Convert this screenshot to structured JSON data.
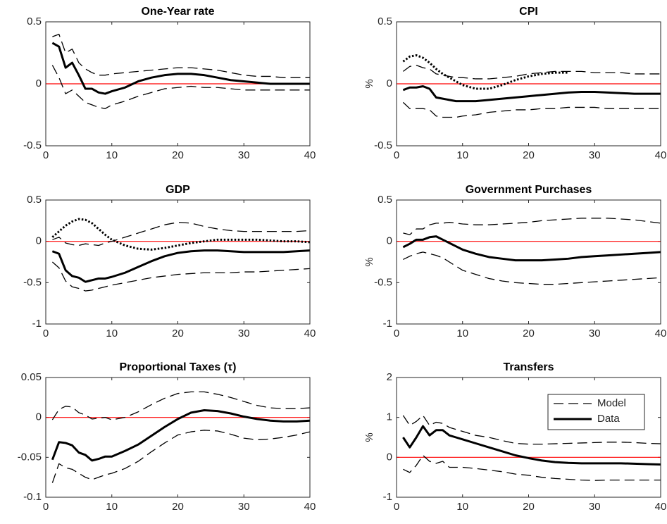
{
  "chart_data": [
    {
      "type": "line",
      "title": "One-Year rate",
      "xlim": [
        0,
        40
      ],
      "xticks": [
        0,
        10,
        20,
        30,
        40
      ],
      "ylim": [
        -0.5,
        0.5
      ],
      "yticks": [
        -0.5,
        0,
        0.5
      ],
      "hline": 0,
      "hline_color": "#ff0000",
      "x": [
        1,
        2,
        3,
        4,
        5,
        6,
        7,
        8,
        9,
        10,
        12,
        14,
        16,
        18,
        20,
        22,
        24,
        26,
        28,
        30,
        32,
        34,
        36,
        38,
        40
      ],
      "series": [
        {
          "style": "dashed",
          "color": "#000000",
          "values": [
            0.38,
            0.4,
            0.25,
            0.28,
            0.17,
            0.12,
            0.09,
            0.07,
            0.07,
            0.08,
            0.09,
            0.1,
            0.11,
            0.12,
            0.13,
            0.13,
            0.12,
            0.11,
            0.09,
            0.07,
            0.06,
            0.06,
            0.05,
            0.05,
            0.05
          ]
        },
        {
          "style": "dashed",
          "color": "#000000",
          "values": [
            0.15,
            0.05,
            -0.08,
            -0.05,
            -0.1,
            -0.15,
            -0.17,
            -0.19,
            -0.2,
            -0.17,
            -0.14,
            -0.1,
            -0.07,
            -0.04,
            -0.03,
            -0.02,
            -0.03,
            -0.03,
            -0.04,
            -0.05,
            -0.05,
            -0.05,
            -0.05,
            -0.05,
            -0.05
          ]
        },
        {
          "style": "solid",
          "color": "#000000",
          "values": [
            0.33,
            0.3,
            0.13,
            0.17,
            0.07,
            -0.04,
            -0.04,
            -0.07,
            -0.08,
            -0.06,
            -0.03,
            0.02,
            0.05,
            0.07,
            0.08,
            0.08,
            0.07,
            0.05,
            0.03,
            0.02,
            0.01,
            0.0,
            0.0,
            0.0,
            0.0
          ]
        }
      ]
    },
    {
      "type": "line",
      "title": "CPI",
      "ylabel": "%",
      "xlim": [
        0,
        40
      ],
      "xticks": [
        0,
        10,
        20,
        30,
        40
      ],
      "ylim": [
        -0.5,
        0.5
      ],
      "yticks": [
        -0.5,
        0,
        0.5
      ],
      "hline": 0,
      "hline_color": "#ff0000",
      "x": [
        1,
        2,
        3,
        4,
        5,
        6,
        7,
        8,
        9,
        10,
        12,
        14,
        16,
        18,
        20,
        22,
        24,
        26,
        28,
        30,
        32,
        34,
        36,
        38,
        40
      ],
      "series": [
        {
          "style": "dashed",
          "color": "#000000",
          "values": [
            0.1,
            0.14,
            0.15,
            0.13,
            0.12,
            0.08,
            0.07,
            0.06,
            0.05,
            0.05,
            0.04,
            0.04,
            0.05,
            0.06,
            0.08,
            0.09,
            0.1,
            0.1,
            0.1,
            0.09,
            0.09,
            0.09,
            0.08,
            0.08,
            0.08
          ]
        },
        {
          "style": "dashed",
          "color": "#000000",
          "values": [
            -0.15,
            -0.2,
            -0.2,
            -0.2,
            -0.21,
            -0.26,
            -0.27,
            -0.27,
            -0.27,
            -0.26,
            -0.25,
            -0.23,
            -0.22,
            -0.21,
            -0.21,
            -0.2,
            -0.2,
            -0.19,
            -0.19,
            -0.19,
            -0.2,
            -0.2,
            -0.2,
            -0.2,
            -0.2
          ]
        },
        {
          "style": "dotted",
          "color": "#000000",
          "values": [
            0.18,
            0.22,
            0.23,
            0.21,
            0.17,
            0.12,
            0.08,
            0.05,
            0.02,
            -0.01,
            -0.04,
            -0.04,
            -0.01,
            0.03,
            0.06,
            0.08,
            0.09,
            0.09,
            null,
            null,
            null,
            null,
            null,
            null,
            null
          ]
        },
        {
          "style": "solid",
          "color": "#000000",
          "values": [
            -0.05,
            -0.03,
            -0.03,
            -0.02,
            -0.04,
            -0.11,
            -0.12,
            -0.13,
            -0.14,
            -0.14,
            -0.14,
            -0.13,
            -0.12,
            -0.11,
            -0.1,
            -0.09,
            -0.08,
            -0.07,
            -0.065,
            -0.065,
            -0.07,
            -0.075,
            -0.08,
            -0.08,
            -0.08
          ]
        }
      ]
    },
    {
      "type": "line",
      "title": "GDP",
      "xlim": [
        0,
        40
      ],
      "xticks": [
        0,
        10,
        20,
        30,
        40
      ],
      "ylim": [
        -1,
        0.5
      ],
      "yticks": [
        -1,
        -0.5,
        0,
        0.5
      ],
      "hline": 0,
      "hline_color": "#ff0000",
      "x": [
        1,
        2,
        3,
        4,
        5,
        6,
        7,
        8,
        9,
        10,
        12,
        14,
        16,
        18,
        20,
        22,
        24,
        26,
        28,
        30,
        32,
        34,
        36,
        38,
        40
      ],
      "series": [
        {
          "style": "dashed",
          "color": "#000000",
          "values": [
            0.02,
            0.05,
            -0.02,
            -0.04,
            -0.05,
            -0.03,
            -0.04,
            -0.05,
            -0.02,
            0.0,
            0.05,
            0.1,
            0.15,
            0.2,
            0.23,
            0.22,
            0.18,
            0.15,
            0.13,
            0.12,
            0.12,
            0.12,
            0.12,
            0.12,
            0.13
          ]
        },
        {
          "style": "dashed",
          "color": "#000000",
          "values": [
            -0.25,
            -0.32,
            -0.48,
            -0.55,
            -0.57,
            -0.6,
            -0.59,
            -0.57,
            -0.55,
            -0.53,
            -0.5,
            -0.47,
            -0.44,
            -0.42,
            -0.4,
            -0.39,
            -0.38,
            -0.38,
            -0.38,
            -0.37,
            -0.37,
            -0.36,
            -0.35,
            -0.34,
            -0.33
          ]
        },
        {
          "style": "dotted",
          "color": "#000000",
          "values": [
            0.05,
            0.12,
            0.19,
            0.24,
            0.27,
            0.26,
            0.22,
            0.15,
            0.08,
            0.02,
            -0.05,
            -0.09,
            -0.1,
            -0.08,
            -0.05,
            -0.02,
            0.0,
            0.02,
            0.02,
            0.02,
            0.02,
            0.01,
            0.0,
            0.0,
            -0.01
          ]
        },
        {
          "style": "solid",
          "color": "#000000",
          "values": [
            -0.12,
            -0.15,
            -0.35,
            -0.42,
            -0.44,
            -0.49,
            -0.47,
            -0.45,
            -0.45,
            -0.43,
            -0.38,
            -0.31,
            -0.24,
            -0.18,
            -0.14,
            -0.12,
            -0.11,
            -0.11,
            -0.12,
            -0.13,
            -0.13,
            -0.13,
            -0.13,
            -0.12,
            -0.11
          ]
        }
      ]
    },
    {
      "type": "line",
      "title": "Government Purchases",
      "ylabel": "%",
      "xlim": [
        0,
        40
      ],
      "xticks": [
        0,
        10,
        20,
        30,
        40
      ],
      "ylim": [
        -1,
        0.5
      ],
      "yticks": [
        -1,
        -0.5,
        0,
        0.5
      ],
      "hline": 0,
      "hline_color": "#ff0000",
      "x": [
        1,
        2,
        3,
        4,
        5,
        6,
        7,
        8,
        9,
        10,
        12,
        14,
        16,
        18,
        20,
        22,
        24,
        26,
        28,
        30,
        32,
        34,
        36,
        38,
        40
      ],
      "series": [
        {
          "style": "dashed",
          "color": "#000000",
          "values": [
            0.1,
            0.08,
            0.15,
            0.15,
            0.2,
            0.22,
            0.22,
            0.23,
            0.22,
            0.21,
            0.2,
            0.2,
            0.21,
            0.22,
            0.23,
            0.25,
            0.26,
            0.27,
            0.28,
            0.28,
            0.28,
            0.27,
            0.26,
            0.24,
            0.22
          ]
        },
        {
          "style": "dashed",
          "color": "#000000",
          "values": [
            -0.22,
            -0.18,
            -0.15,
            -0.13,
            -0.15,
            -0.17,
            -0.2,
            -0.25,
            -0.3,
            -0.35,
            -0.4,
            -0.45,
            -0.48,
            -0.5,
            -0.51,
            -0.52,
            -0.52,
            -0.51,
            -0.5,
            -0.49,
            -0.48,
            -0.47,
            -0.46,
            -0.45,
            -0.44
          ]
        },
        {
          "style": "solid",
          "color": "#000000",
          "values": [
            -0.07,
            -0.03,
            0.02,
            0.02,
            0.05,
            0.06,
            0.02,
            -0.02,
            -0.06,
            -0.1,
            -0.15,
            -0.19,
            -0.21,
            -0.23,
            -0.23,
            -0.23,
            -0.22,
            -0.21,
            -0.19,
            -0.18,
            -0.17,
            -0.16,
            -0.15,
            -0.14,
            -0.13
          ]
        }
      ]
    },
    {
      "type": "line",
      "title": "Proportional Taxes (τ)",
      "xlim": [
        0,
        40
      ],
      "xticks": [
        0,
        10,
        20,
        30,
        40
      ],
      "ylim": [
        -0.1,
        0.05
      ],
      "yticks": [
        -0.1,
        -0.05,
        0,
        0.05
      ],
      "hline": 0,
      "hline_color": "#ff0000",
      "x": [
        1,
        2,
        3,
        4,
        5,
        6,
        7,
        8,
        9,
        10,
        12,
        14,
        16,
        18,
        20,
        22,
        24,
        26,
        28,
        30,
        32,
        34,
        36,
        38,
        40
      ],
      "series": [
        {
          "style": "dashed",
          "color": "#000000",
          "values": [
            -0.003,
            0.01,
            0.014,
            0.013,
            0.006,
            0.003,
            -0.002,
            -0.001,
            0.0,
            -0.003,
            0.0,
            0.007,
            0.016,
            0.024,
            0.03,
            0.032,
            0.032,
            0.029,
            0.025,
            0.02,
            0.015,
            0.012,
            0.011,
            0.011,
            0.012
          ]
        },
        {
          "style": "dashed",
          "color": "#000000",
          "values": [
            -0.082,
            -0.058,
            -0.063,
            -0.065,
            -0.07,
            -0.075,
            -0.078,
            -0.075,
            -0.072,
            -0.07,
            -0.064,
            -0.055,
            -0.043,
            -0.032,
            -0.022,
            -0.018,
            -0.016,
            -0.017,
            -0.021,
            -0.026,
            -0.028,
            -0.027,
            -0.025,
            -0.022,
            -0.018
          ]
        },
        {
          "style": "solid",
          "color": "#000000",
          "values": [
            -0.053,
            -0.031,
            -0.032,
            -0.035,
            -0.044,
            -0.047,
            -0.054,
            -0.052,
            -0.049,
            -0.049,
            -0.042,
            -0.034,
            -0.023,
            -0.012,
            -0.002,
            0.006,
            0.009,
            0.008,
            0.005,
            0.001,
            -0.002,
            -0.004,
            -0.005,
            -0.005,
            -0.004
          ]
        }
      ]
    },
    {
      "type": "line",
      "title": "Transfers",
      "ylabel": "%",
      "xlim": [
        0,
        40
      ],
      "xticks": [
        0,
        10,
        20,
        30,
        40
      ],
      "ylim": [
        -1,
        2
      ],
      "yticks": [
        -1,
        0,
        1,
        2
      ],
      "hline": 0,
      "hline_color": "#ff0000",
      "legend": "upper right",
      "x": [
        1,
        2,
        3,
        4,
        5,
        6,
        7,
        8,
        9,
        10,
        12,
        14,
        16,
        18,
        20,
        22,
        24,
        26,
        28,
        30,
        32,
        34,
        36,
        38,
        40
      ],
      "series": [
        {
          "name": "Model",
          "style": "dashed",
          "color": "#000000",
          "values": [
            1.05,
            0.8,
            0.9,
            1.05,
            0.8,
            0.88,
            0.85,
            0.75,
            0.7,
            0.65,
            0.55,
            0.5,
            0.42,
            0.35,
            0.33,
            0.33,
            0.34,
            0.35,
            0.36,
            0.37,
            0.38,
            0.38,
            0.37,
            0.35,
            0.34
          ]
        },
        {
          "style": "dashed",
          "color": "#000000",
          "values": [
            -0.3,
            -0.38,
            -0.2,
            0.05,
            -0.1,
            -0.15,
            -0.1,
            -0.25,
            -0.25,
            -0.25,
            -0.28,
            -0.32,
            -0.36,
            -0.42,
            -0.45,
            -0.5,
            -0.53,
            -0.55,
            -0.57,
            -0.58,
            -0.57,
            -0.57,
            -0.57,
            -0.57,
            -0.57
          ]
        },
        {
          "name": "Data",
          "style": "solid",
          "color": "#000000",
          "values": [
            0.5,
            0.25,
            0.5,
            0.78,
            0.55,
            0.68,
            0.68,
            0.55,
            0.5,
            0.45,
            0.35,
            0.25,
            0.15,
            0.05,
            -0.02,
            -0.08,
            -0.12,
            -0.14,
            -0.15,
            -0.15,
            -0.15,
            -0.15,
            -0.16,
            -0.17,
            -0.18
          ]
        }
      ]
    }
  ]
}
